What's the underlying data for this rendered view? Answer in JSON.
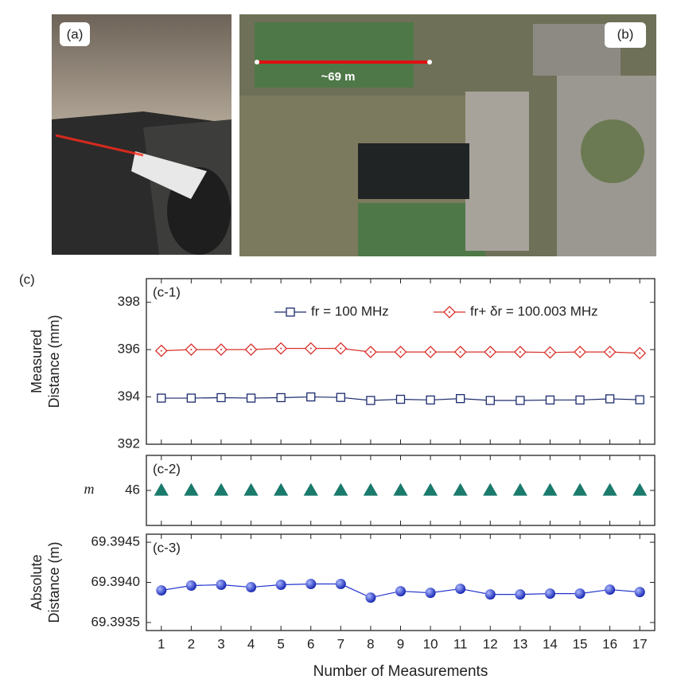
{
  "panels": {
    "a_label": "(a)",
    "b_label": "(b)",
    "distance_label": "~69 m",
    "c_label": "(c)"
  },
  "chart_data": [
    {
      "type": "line",
      "panel_label": "(c-1)",
      "y_label": [
        "Measured",
        "Distance (mm)"
      ],
      "x": [
        1,
        2,
        3,
        4,
        5,
        6,
        7,
        8,
        9,
        10,
        11,
        12,
        13,
        14,
        15,
        16,
        17
      ],
      "xlim": [
        0.5,
        17.5
      ],
      "xticks": [
        1,
        2,
        3,
        4,
        5,
        6,
        7,
        8,
        9,
        10,
        11,
        12,
        13,
        14,
        15,
        16,
        17
      ],
      "ylim": [
        392,
        399
      ],
      "yticks": [
        392,
        394,
        396,
        398
      ],
      "series": [
        {
          "name": "fr = 100 MHz",
          "color": "#1c2a6e",
          "marker": "square",
          "values": [
            393.95,
            393.95,
            393.97,
            393.95,
            393.97,
            394.0,
            393.98,
            393.85,
            393.9,
            393.87,
            393.93,
            393.85,
            393.85,
            393.87,
            393.87,
            393.92,
            393.88
          ]
        },
        {
          "name": "fr+ δr = 100.003 MHz",
          "color": "#d9302a",
          "marker": "diamond",
          "values": [
            395.95,
            396.0,
            396.0,
            396.0,
            396.05,
            396.05,
            396.05,
            395.9,
            395.9,
            395.9,
            395.9,
            395.9,
            395.9,
            395.88,
            395.9,
            395.9,
            395.85
          ]
        }
      ]
    },
    {
      "type": "scatter",
      "panel_label": "(c-2)",
      "y_label": [
        "m"
      ],
      "x": [
        1,
        2,
        3,
        4,
        5,
        6,
        7,
        8,
        9,
        10,
        11,
        12,
        13,
        14,
        15,
        16,
        17
      ],
      "xlim": [
        0.5,
        17.5
      ],
      "xticks": [
        1,
        2,
        3,
        4,
        5,
        6,
        7,
        8,
        9,
        10,
        11,
        12,
        13,
        14,
        15,
        16,
        17
      ],
      "ylim": [
        45,
        47
      ],
      "yticks": [
        46
      ],
      "series": [
        {
          "color": "#1a7a6c",
          "marker": "triangle",
          "values": [
            46,
            46,
            46,
            46,
            46,
            46,
            46,
            46,
            46,
            46,
            46,
            46,
            46,
            46,
            46,
            46,
            46
          ]
        }
      ]
    },
    {
      "type": "line",
      "panel_label": "(c-3)",
      "y_label": [
        "Absolute",
        "Distance (m)"
      ],
      "x_label": "Number of Measurements",
      "x": [
        1,
        2,
        3,
        4,
        5,
        6,
        7,
        8,
        9,
        10,
        11,
        12,
        13,
        14,
        15,
        16,
        17
      ],
      "xlim": [
        0.5,
        17.5
      ],
      "xticks": [
        1,
        2,
        3,
        4,
        5,
        6,
        7,
        8,
        9,
        10,
        11,
        12,
        13,
        14,
        15,
        16,
        17
      ],
      "ylim": [
        69.3934,
        69.3946
      ],
      "yticks": [
        69.3935,
        {
          "value": 69.394,
          "label": "69.3940"
        },
        69.3945
      ],
      "series": [
        {
          "color": "#2233cc",
          "marker": "circle",
          "values": [
            69.3939,
            69.39396,
            69.39397,
            69.39394,
            69.39397,
            69.39398,
            69.39398,
            69.39381,
            69.39389,
            69.39387,
            69.39392,
            69.39385,
            69.39385,
            69.39386,
            69.39386,
            69.39391,
            69.39388
          ]
        }
      ]
    }
  ]
}
